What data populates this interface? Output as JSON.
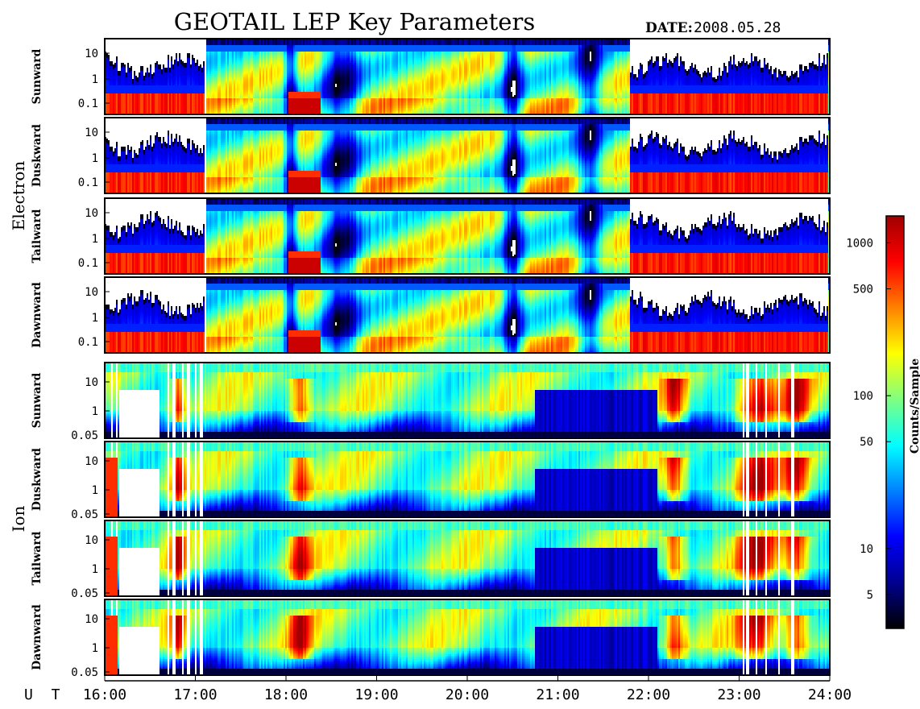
{
  "title": "GEOTAIL LEP Key Parameters",
  "date_label": "DATE:",
  "date_value": "2008.05.28",
  "colorbar": {
    "label": "Counts/Sample",
    "ticks": [
      {
        "value": 1000,
        "label": "1000"
      },
      {
        "value": 500,
        "label": "500"
      },
      {
        "value": 100,
        "label": "100"
      },
      {
        "value": 50,
        "label": "50"
      },
      {
        "value": 10,
        "label": "10"
      },
      {
        "value": 5,
        "label": "5"
      }
    ],
    "range": [
      3,
      1500
    ],
    "scale": "log",
    "colors": [
      "#000000",
      "#00008f",
      "#0000ff",
      "#0080ff",
      "#00ffff",
      "#80ff80",
      "#ffff00",
      "#ff8000",
      "#ff0000",
      "#a00000"
    ]
  },
  "chart_data": {
    "type": "heatmap",
    "x_axis": {
      "label": "U T",
      "range": [
        "16:00",
        "24:00"
      ],
      "ticks": [
        "16:00",
        "17:00",
        "18:00",
        "19:00",
        "20:00",
        "21:00",
        "22:00",
        "23:00",
        "24:00"
      ]
    },
    "groups": [
      {
        "name": "Electron",
        "y_scale": "log",
        "y_ticks": [
          "10",
          "1",
          "0.1"
        ],
        "panels": [
          {
            "name": "Sunward"
          },
          {
            "name": "Duskward"
          },
          {
            "name": "Tailward"
          },
          {
            "name": "Dawnward"
          }
        ]
      },
      {
        "name": "Ion",
        "y_scale": "log",
        "y_ticks": [
          "10",
          "1",
          "0.05"
        ],
        "panels": [
          {
            "name": "Sunward"
          },
          {
            "name": "Duskward"
          },
          {
            "name": "Tailward"
          },
          {
            "name": "Dawnward"
          }
        ]
      }
    ]
  }
}
